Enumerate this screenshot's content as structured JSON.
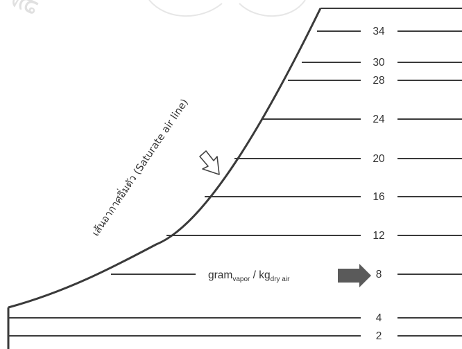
{
  "diagram": {
    "curve_label": "เส้นอากาศอิ่มตัว (Saturate air line)",
    "unit_label": {
      "main_a": "gram",
      "sub_a": "vapor",
      "separator": " / ",
      "main_b": "kg",
      "sub_b": "dry air"
    },
    "lines": [
      {
        "label": "34"
      },
      {
        "label": "30"
      },
      {
        "label": "28"
      },
      {
        "label": "24"
      },
      {
        "label": "20"
      },
      {
        "label": "16"
      },
      {
        "label": "12"
      },
      {
        "label": "8"
      },
      {
        "label": "4"
      },
      {
        "label": "2"
      }
    ]
  },
  "watermark": {
    "text": "มหาวิทยาลัยเชียงใหม่ ลิขสิทธิ์",
    "visible_arc_text": "ลิขสิทธิ์มหาวิทยาลัยเชียงใหม่"
  },
  "colors": {
    "line": "#3a3a3a",
    "text": "#333333",
    "arrow_fill": "#5a5a5a",
    "watermark": "#c8c8c8"
  }
}
